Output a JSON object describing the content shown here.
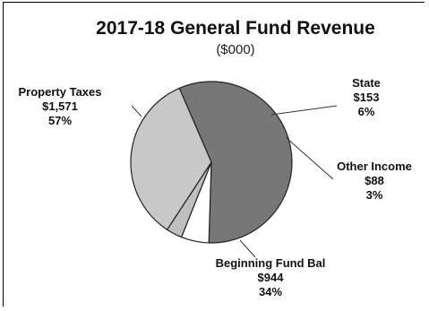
{
  "chart_data": {
    "type": "pie",
    "title": "2017-18 General Fund Revenue",
    "subtitle": "($000)",
    "slices": [
      {
        "label": "Property Taxes",
        "value_text": "$1,571",
        "percent_text": "57%",
        "value": 1571,
        "color": "#777777"
      },
      {
        "label": "State",
        "value_text": "$153",
        "percent_text": "6%",
        "value": 153,
        "color": "#ffffff"
      },
      {
        "label": "Other Income",
        "value_text": "$88",
        "percent_text": "3%",
        "value": 88,
        "color": "#bfbfbf"
      },
      {
        "label": "Beginning Fund Bal",
        "value_text": "$944",
        "percent_text": "34%",
        "value": 944,
        "color": "#c8c8c8"
      }
    ]
  }
}
